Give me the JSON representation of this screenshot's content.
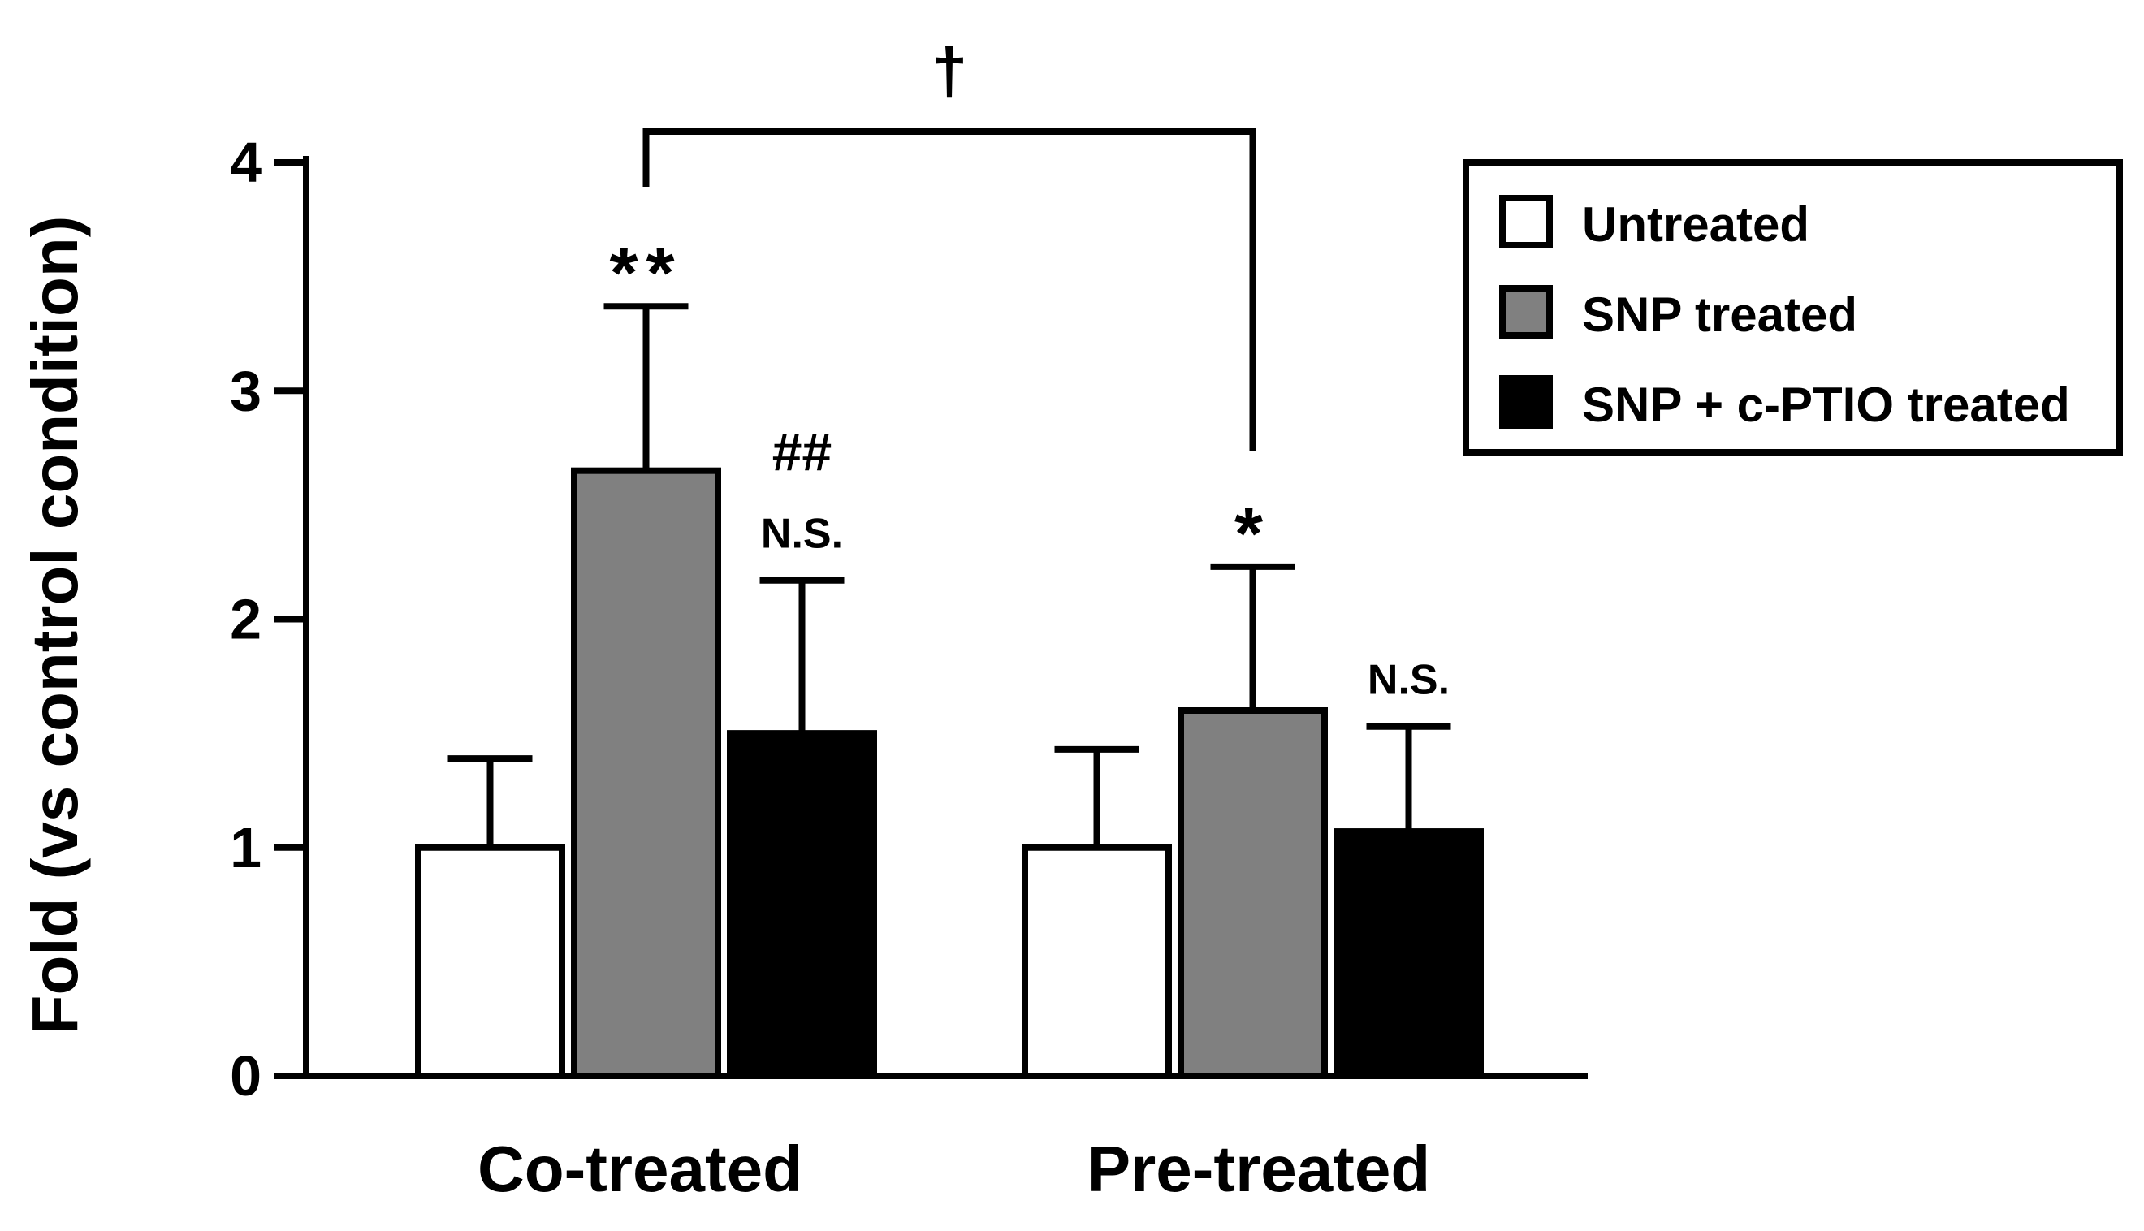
{
  "chart_data": {
    "type": "bar",
    "ylabel": "Fold (vs control condition)",
    "xlabel": "",
    "ylim": [
      0,
      4
    ],
    "yticks": [
      0,
      1,
      2,
      3,
      4
    ],
    "categories": [
      "Co-treated",
      "Pre-treated"
    ],
    "series": [
      {
        "name": "Untreated",
        "color": "#ffffff",
        "values": [
          1.0,
          1.0
        ],
        "errors": [
          0.39,
          0.43
        ],
        "annotations": [
          "",
          ""
        ]
      },
      {
        "name": "SNP treated",
        "color": "#808080",
        "values": [
          2.65,
          1.6
        ],
        "errors": [
          0.72,
          0.63
        ],
        "annotations": [
          "**",
          "*"
        ]
      },
      {
        "name": "SNP + c-PTIO treated",
        "color": "#000000",
        "values": [
          1.5,
          1.07
        ],
        "errors": [
          0.67,
          0.46
        ],
        "annotations": [
          "##\nN.S.",
          "N.S."
        ]
      }
    ],
    "comparison": {
      "label": "†",
      "from": "Co-treated / SNP treated",
      "to": "Pre-treated / SNP treated"
    },
    "legend_position": "top-right"
  }
}
